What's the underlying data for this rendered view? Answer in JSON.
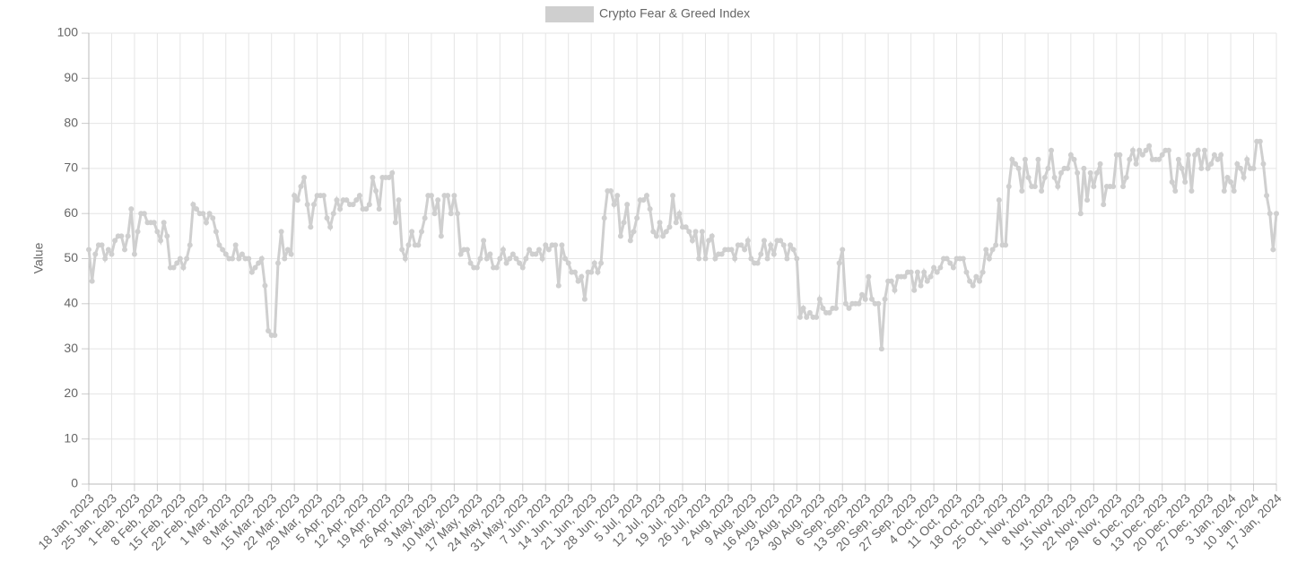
{
  "chart_data": {
    "type": "line",
    "legend_position": "top",
    "y_label": "Value",
    "grid": true,
    "ylim": [
      0,
      100
    ],
    "yticks": [
      0,
      10,
      20,
      30,
      40,
      50,
      60,
      70,
      80,
      90,
      100
    ],
    "categories": [
      "18 Jan, 2023",
      null,
      null,
      null,
      null,
      null,
      null,
      "25 Jan, 2023",
      null,
      null,
      null,
      null,
      null,
      null,
      "1 Feb, 2023",
      null,
      null,
      null,
      null,
      null,
      null,
      "8 Feb, 2023",
      null,
      null,
      null,
      null,
      null,
      null,
      "15 Feb, 2023",
      null,
      null,
      null,
      null,
      null,
      null,
      "22 Feb, 2023",
      null,
      null,
      null,
      null,
      null,
      null,
      "1 Mar, 2023",
      null,
      null,
      null,
      null,
      null,
      null,
      "8 Mar, 2023",
      null,
      null,
      null,
      null,
      null,
      null,
      "15 Mar, 2023",
      null,
      null,
      null,
      null,
      null,
      null,
      "22 Mar, 2023",
      null,
      null,
      null,
      null,
      null,
      null,
      "29 Mar, 2023",
      null,
      null,
      null,
      null,
      null,
      null,
      "5 Apr, 2023",
      null,
      null,
      null,
      null,
      null,
      null,
      "12 Apr, 2023",
      null,
      null,
      null,
      null,
      null,
      null,
      "19 Apr, 2023",
      null,
      null,
      null,
      null,
      null,
      null,
      "26 Apr, 2023",
      null,
      null,
      null,
      null,
      null,
      null,
      "3 May, 2023",
      null,
      null,
      null,
      null,
      null,
      null,
      "10 May, 2023",
      null,
      null,
      null,
      null,
      null,
      null,
      "17 May, 2023",
      null,
      null,
      null,
      null,
      null,
      null,
      "24 May, 2023",
      null,
      null,
      null,
      null,
      null,
      null,
      "31 May, 2023",
      null,
      null,
      null,
      null,
      null,
      null,
      "7 Jun, 2023",
      null,
      null,
      null,
      null,
      null,
      null,
      "14 Jun, 2023",
      null,
      null,
      null,
      null,
      null,
      null,
      "21 Jun, 2023",
      null,
      null,
      null,
      null,
      null,
      null,
      "28 Jun, 2023",
      null,
      null,
      null,
      null,
      null,
      null,
      "5 Jul, 2023",
      null,
      null,
      null,
      null,
      null,
      null,
      "12 Jul, 2023",
      null,
      null,
      null,
      null,
      null,
      null,
      "19 Jul, 2023",
      null,
      null,
      null,
      null,
      null,
      null,
      "26 Jul, 2023",
      null,
      null,
      null,
      null,
      null,
      null,
      "2 Aug, 2023",
      null,
      null,
      null,
      null,
      null,
      null,
      "9 Aug, 2023",
      null,
      null,
      null,
      null,
      null,
      null,
      "16 Aug, 2023",
      null,
      null,
      null,
      null,
      null,
      null,
      "23 Aug, 2023",
      null,
      null,
      null,
      null,
      null,
      null,
      "30 Aug, 2023",
      null,
      null,
      null,
      null,
      null,
      null,
      "6 Sep, 2023",
      null,
      null,
      null,
      null,
      null,
      null,
      "13 Sep, 2023",
      null,
      null,
      null,
      null,
      null,
      null,
      "20 Sep, 2023",
      null,
      null,
      null,
      null,
      null,
      null,
      "27 Sep, 2023",
      null,
      null,
      null,
      null,
      null,
      null,
      "4 Oct, 2023",
      null,
      null,
      null,
      null,
      null,
      null,
      "11 Oct, 2023",
      null,
      null,
      null,
      null,
      null,
      null,
      "18 Oct, 2023",
      null,
      null,
      null,
      null,
      null,
      null,
      "25 Oct, 2023",
      null,
      null,
      null,
      null,
      null,
      null,
      "1 Nov, 2023",
      null,
      null,
      null,
      null,
      null,
      null,
      "8 Nov, 2023",
      null,
      null,
      null,
      null,
      null,
      null,
      "15 Nov, 2023",
      null,
      null,
      null,
      null,
      null,
      null,
      "22 Nov, 2023",
      null,
      null,
      null,
      null,
      null,
      null,
      "29 Nov, 2023",
      null,
      null,
      null,
      null,
      null,
      null,
      "6 Dec, 2023",
      null,
      null,
      null,
      null,
      null,
      null,
      "13 Dec, 2023",
      null,
      null,
      null,
      null,
      null,
      null,
      "20 Dec, 2023",
      null,
      null,
      null,
      null,
      null,
      null,
      "27 Dec, 2023",
      null,
      null,
      null,
      null,
      null,
      null,
      "3 Jan, 2024",
      null,
      null,
      null,
      null,
      null,
      null,
      "10 Jan, 2024",
      null,
      null,
      null,
      null,
      null,
      null,
      "17 Jan, 2024"
    ],
    "series": [
      {
        "name": "Crypto Fear & Greed Index",
        "color": "#cfcfcf",
        "values": [
          52,
          45,
          51,
          53,
          53,
          50,
          52,
          51,
          54,
          55,
          55,
          52,
          55,
          61,
          51,
          56,
          60,
          60,
          58,
          58,
          58,
          56,
          54,
          58,
          55,
          48,
          48,
          49,
          50,
          48,
          50,
          53,
          62,
          61,
          60,
          60,
          58,
          60,
          59,
          56,
          53,
          52,
          51,
          50,
          50,
          53,
          50,
          51,
          50,
          50,
          47,
          48,
          49,
          50,
          44,
          34,
          33,
          33,
          49,
          56,
          50,
          52,
          51,
          64,
          63,
          66,
          68,
          62,
          57,
          62,
          64,
          64,
          64,
          59,
          57,
          60,
          63,
          61,
          63,
          63,
          62,
          62,
          63,
          64,
          61,
          61,
          62,
          68,
          65,
          61,
          68,
          68,
          68,
          69,
          58,
          63,
          52,
          50,
          53,
          56,
          53,
          53,
          56,
          59,
          64,
          64,
          60,
          63,
          55,
          64,
          64,
          60,
          64,
          60,
          51,
          52,
          52,
          49,
          48,
          48,
          50,
          54,
          50,
          51,
          48,
          48,
          50,
          52,
          49,
          50,
          51,
          50,
          49,
          48,
          50,
          52,
          51,
          51,
          52,
          50,
          53,
          52,
          53,
          53,
          44,
          53,
          50,
          49,
          47,
          47,
          45,
          46,
          41,
          47,
          47,
          49,
          47,
          49,
          59,
          65,
          65,
          62,
          64,
          55,
          58,
          62,
          54,
          56,
          59,
          63,
          63,
          64,
          61,
          56,
          55,
          58,
          55,
          56,
          57,
          64,
          58,
          60,
          57,
          57,
          56,
          54,
          56,
          50,
          56,
          50,
          54,
          55,
          50,
          51,
          51,
          52,
          52,
          52,
          50,
          53,
          53,
          52,
          54,
          50,
          49,
          49,
          51,
          54,
          50,
          53,
          51,
          54,
          54,
          53,
          50,
          53,
          52,
          50,
          37,
          39,
          37,
          38,
          37,
          37,
          41,
          39,
          38,
          38,
          39,
          39,
          49,
          52,
          40,
          39,
          40,
          40,
          40,
          42,
          41,
          46,
          41,
          40,
          40,
          30,
          41,
          45,
          45,
          43,
          46,
          46,
          46,
          47,
          47,
          43,
          47,
          44,
          47,
          45,
          46,
          48,
          47,
          48,
          50,
          50,
          49,
          48,
          50,
          50,
          50,
          47,
          45,
          44,
          46,
          45,
          47,
          52,
          50,
          52,
          53,
          63,
          53,
          53,
          66,
          72,
          71,
          70,
          65,
          72,
          68,
          66,
          66,
          72,
          65,
          68,
          70,
          74,
          68,
          66,
          69,
          70,
          70,
          73,
          72,
          69,
          60,
          70,
          63,
          69,
          66,
          69,
          71,
          62,
          66,
          66,
          66,
          73,
          73,
          66,
          68,
          72,
          74,
          71,
          74,
          73,
          74,
          75,
          72,
          72,
          72,
          73,
          74,
          74,
          67,
          65,
          72,
          70,
          67,
          73,
          65,
          73,
          74,
          70,
          74,
          70,
          71,
          73,
          72,
          73,
          65,
          68,
          67,
          65,
          71,
          70,
          68,
          72,
          70,
          70,
          76,
          76,
          71,
          64,
          60,
          52,
          60
        ]
      }
    ]
  }
}
